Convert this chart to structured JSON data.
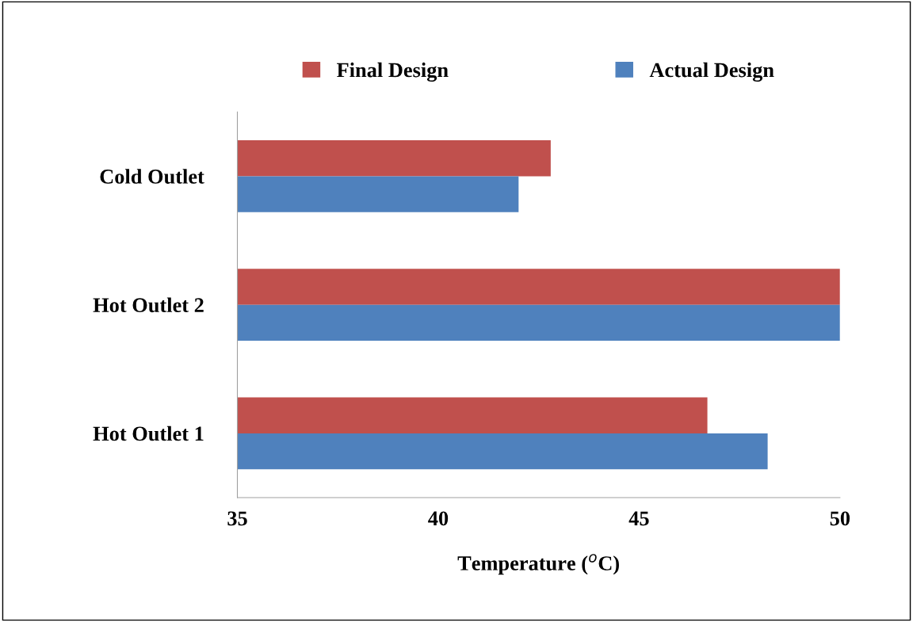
{
  "chart_data": {
    "type": "bar",
    "orientation": "horizontal",
    "xlabel": "Temperature ($^{o}$C)",
    "categories": [
      "Cold Outlet",
      "Hot Outlet 2",
      "Hot Outlet 1"
    ],
    "series": [
      {
        "name": "Final Design",
        "color": "#c0504d",
        "values": [
          42.8,
          50,
          46.7
        ]
      },
      {
        "name": "Actual Design",
        "color": "#4f81bd",
        "values": [
          42,
          50,
          48.2
        ]
      }
    ],
    "xlim": [
      35,
      50
    ],
    "xticks": [
      35,
      40,
      45,
      50
    ],
    "grid": false,
    "legend": "top"
  }
}
